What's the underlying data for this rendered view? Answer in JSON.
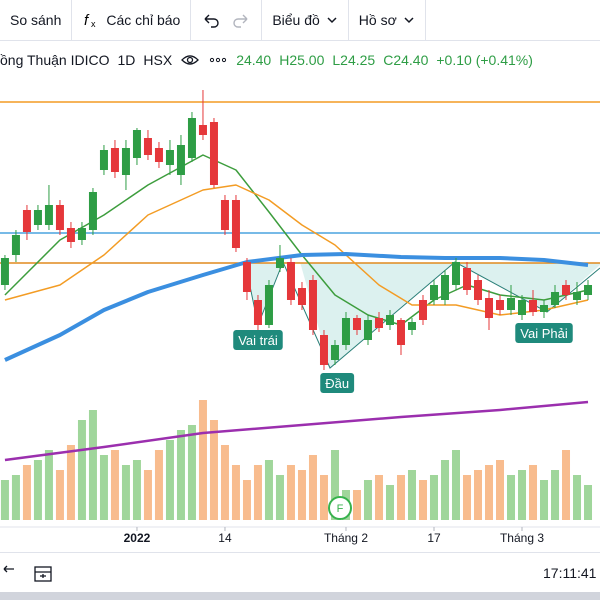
{
  "toolbar": {
    "compare": "So sánh",
    "indicators": "Các chỉ báo",
    "chart_type": "Biểu đồ",
    "profile": "Hồ sơ"
  },
  "legend": {
    "symbol": "ồng Thuận IDICO",
    "interval": "1D",
    "exchange": "HSX",
    "open": "24.40",
    "high": "H25.00",
    "low": "L24.25",
    "close": "C24.40",
    "change": "+0.10 (+0.41%)"
  },
  "chart_data": {
    "type": "candlestick",
    "up_color": "#2e9d45",
    "down_color": "#e5373a",
    "xlim": [
      -0.45,
      54.09
    ],
    "ylim": [
      5,
      30
    ],
    "vlim": [
      0,
      120
    ],
    "xticks": [
      {
        "value": 12,
        "label": "2022"
      },
      {
        "value": 20,
        "label": "14"
      },
      {
        "value": 31,
        "label": "Tháng 2"
      },
      {
        "value": 39,
        "label": "17"
      },
      {
        "value": 47,
        "label": "Tháng 3"
      }
    ],
    "open": [
      19.75,
      21.25,
      23.5,
      22.75,
      22.75,
      23.75,
      22.6,
      22,
      22.5,
      25.5,
      26.6,
      25.25,
      26.1,
      27.1,
      26.6,
      25.75,
      25.25,
      26.1,
      27.75,
      27.9,
      24,
      24,
      20.9,
      19,
      17.75,
      20.6,
      20.9,
      19.6,
      20,
      17.25,
      16,
      16.75,
      18.1,
      17,
      18.1,
      17.75,
      18,
      17.5,
      19,
      19,
      19,
      19.75,
      20.6,
      20,
      19.1,
      19,
      18.5,
      18.25,
      19,
      18.4,
      18.75,
      19.75,
      19,
      19.25
    ],
    "high": [
      21.25,
      22.5,
      23.75,
      23.75,
      24.75,
      24,
      22.9,
      22.9,
      24.6,
      26.75,
      27,
      27,
      27.6,
      27.5,
      26.9,
      27,
      27.25,
      28.4,
      29.5,
      28.1,
      24.25,
      24.25,
      21.1,
      19.25,
      20,
      21.75,
      21.1,
      19.9,
      20.25,
      17.5,
      17,
      18.4,
      18.25,
      18.25,
      18.4,
      18.5,
      18.1,
      18.1,
      19.25,
      20,
      20.5,
      21.1,
      20.9,
      20.25,
      19.5,
      19.25,
      19.75,
      19.25,
      19.5,
      19,
      19.75,
      20,
      19.9,
      20
    ],
    "low": [
      19.5,
      20.9,
      22,
      22.5,
      22.5,
      22.25,
      21.6,
      21.75,
      22.25,
      25.25,
      25.1,
      24.5,
      25.75,
      26,
      25.6,
      25.25,
      24.75,
      25.9,
      27,
      24.6,
      22.25,
      21.4,
      19,
      17.5,
      17.6,
      20.4,
      18.75,
      18.5,
      17.25,
      15.5,
      15.75,
      16.5,
      17.25,
      16.75,
      17.4,
      17.5,
      16.25,
      17.25,
      17.75,
      18.75,
      18.75,
      19.5,
      19.25,
      18.75,
      17.5,
      18.25,
      18.25,
      18,
      18.2,
      18.1,
      18.6,
      19,
      18.75,
      19
    ],
    "close": [
      21.1,
      22.25,
      22.4,
      23.5,
      23.75,
      22.5,
      21.9,
      22.6,
      24.4,
      26.5,
      25.4,
      26.6,
      27.5,
      26.25,
      25.9,
      26.5,
      26.75,
      28.1,
      27.25,
      24.75,
      22.5,
      21.6,
      19.4,
      17.75,
      19.75,
      21.1,
      19,
      18.75,
      17.5,
      15.75,
      16.75,
      18.1,
      17.5,
      18,
      17.6,
      18.25,
      16.75,
      17.9,
      18,
      19.75,
      20.25,
      20.9,
      19.5,
      19,
      18.1,
      18.5,
      19.1,
      19,
      18.4,
      18.75,
      19.4,
      19.25,
      19.4,
      19.75
    ],
    "volumes": [
      40,
      45,
      55,
      60,
      70,
      50,
      75,
      100,
      110,
      65,
      70,
      55,
      60,
      50,
      70,
      80,
      90,
      95,
      120,
      100,
      75,
      55,
      40,
      55,
      60,
      45,
      55,
      50,
      65,
      45,
      70,
      30,
      30,
      40,
      45,
      35,
      45,
      50,
      40,
      45,
      60,
      70,
      45,
      50,
      55,
      60,
      45,
      50,
      55,
      40,
      50,
      70,
      45,
      35
    ],
    "volume_up_color": "#8fcf8a",
    "volume_down_color": "#f7b07a",
    "lines": [
      {
        "color": "#3d9d3d",
        "width": 1.5,
        "x": [
          0,
          5,
          9,
          13,
          18,
          21,
          24,
          27,
          30,
          33,
          36,
          39,
          42,
          45,
          49,
          53
        ],
        "values": [
          19.25,
          22,
          23.25,
          24.75,
          26.25,
          25.5,
          23.4,
          21.25,
          19.25,
          18.25,
          17.75,
          19,
          19.75,
          19.25,
          19,
          19.5
        ]
      },
      {
        "color": "#f39c24",
        "width": 1.5,
        "x": [
          0,
          5,
          9,
          13,
          18,
          21,
          24,
          27,
          30,
          34,
          37,
          41,
          45,
          49,
          53
        ],
        "values": [
          19,
          19.75,
          21.25,
          23.25,
          24.5,
          24.75,
          24,
          22.75,
          21.75,
          19.75,
          18.75,
          18.75,
          18.25,
          18.5,
          19
        ]
      },
      {
        "color": "#3b8fe0",
        "width": 4,
        "x": [
          0,
          5,
          9,
          13,
          18,
          22,
          27,
          31,
          36,
          40,
          45,
          49,
          53
        ],
        "values": [
          16,
          17.25,
          18.5,
          19.4,
          20.25,
          20.9,
          21.25,
          21.3,
          21.15,
          21.1,
          21.1,
          21,
          20.75
        ]
      },
      {
        "color": "#9b2fae",
        "width": 2.5,
        "x": [
          0,
          9,
          18,
          27,
          36,
          45,
          53
        ],
        "values": [
          11,
          11.65,
          12.35,
          12.75,
          13.15,
          13.5,
          13.9
        ]
      }
    ],
    "levels": [
      {
        "value": 28.9,
        "color": "#f39c24"
      },
      {
        "value": 22.35,
        "color": "#4aa3df"
      },
      {
        "value": 20.85,
        "color": "#e08a1e"
      }
    ],
    "annotations": [
      {
        "text": "Vai trái",
        "x": 23,
        "y": 17
      },
      {
        "text": "Đầu",
        "x": 30.2,
        "y": 14.85
      },
      {
        "text": "Vai Phải",
        "x": 49,
        "y": 17.35
      }
    ],
    "event_marker": "F"
  },
  "footer": {
    "time": "17:11:41"
  }
}
